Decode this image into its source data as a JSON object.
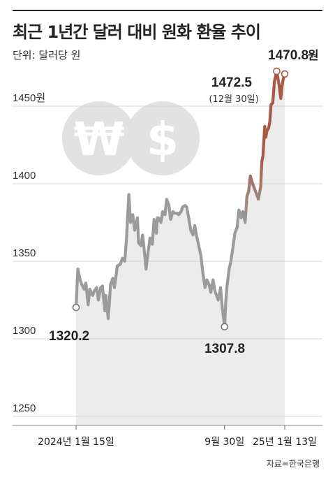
{
  "header": {
    "title": "최근 1년간 달러 대비 원화 환율 추이",
    "unit": "단위: 달러당 원"
  },
  "footer": {
    "source": "자료=한국은행"
  },
  "decor": {
    "won_glyph": "₩",
    "dollar_glyph": "$"
  },
  "colors": {
    "gray_line": "#9b9b9b",
    "accent_line": "#a85a44",
    "area": "#ececec",
    "grid": "#d4d4d4",
    "coin": "#e2e2e2"
  },
  "chart_data": {
    "type": "line",
    "title": "최근 1년간 달러 대비 원화 환율 추이",
    "ylabel": "단위: 달러당 원",
    "ylim": [
      1250,
      1475
    ],
    "yticks": [
      {
        "value": 1450,
        "label": "1450원"
      },
      {
        "value": 1400,
        "label": "1400"
      },
      {
        "value": 1350,
        "label": "1350"
      },
      {
        "value": 1300,
        "label": "1300"
      },
      {
        "value": 1250,
        "label": "1250"
      }
    ],
    "x_ticks": [
      {
        "date": "2024-01-15",
        "label": "2024년 1월 15일"
      },
      {
        "date": "2024-09-30",
        "label": "9월 30일"
      },
      {
        "date": "2025-01-13",
        "label": "25년 1월 13일"
      }
    ],
    "grid": true,
    "accent_from": "2024-11-01",
    "series": [
      {
        "values": [
          [
            "2024-01-15",
            1320.2
          ],
          [
            "2024-01-18",
            1345
          ],
          [
            "2024-01-22",
            1338
          ],
          [
            "2024-01-25",
            1335
          ],
          [
            "2024-01-29",
            1332
          ],
          [
            "2024-02-01",
            1336
          ],
          [
            "2024-02-05",
            1322
          ],
          [
            "2024-02-08",
            1332
          ],
          [
            "2024-02-13",
            1328
          ],
          [
            "2024-02-16",
            1331
          ],
          [
            "2024-02-20",
            1333
          ],
          [
            "2024-02-23",
            1325
          ],
          [
            "2024-02-27",
            1333
          ],
          [
            "2024-03-01",
            1334
          ],
          [
            "2024-03-05",
            1318
          ],
          [
            "2024-03-07",
            1328
          ],
          [
            "2024-03-11",
            1313
          ],
          [
            "2024-03-13",
            1322
          ],
          [
            "2024-03-15",
            1335
          ],
          [
            "2024-03-19",
            1339
          ],
          [
            "2024-03-22",
            1333
          ],
          [
            "2024-03-27",
            1347
          ],
          [
            "2024-04-01",
            1348
          ],
          [
            "2024-04-05",
            1352
          ],
          [
            "2024-04-09",
            1350
          ],
          [
            "2024-04-12",
            1365
          ],
          [
            "2024-04-16",
            1393
          ],
          [
            "2024-04-19",
            1375
          ],
          [
            "2024-04-23",
            1380
          ],
          [
            "2024-04-26",
            1370
          ],
          [
            "2024-05-01",
            1378
          ],
          [
            "2024-05-03",
            1362
          ],
          [
            "2024-05-07",
            1360
          ],
          [
            "2024-05-10",
            1367
          ],
          [
            "2024-05-14",
            1353
          ],
          [
            "2024-05-16",
            1345
          ],
          [
            "2024-05-20",
            1357
          ],
          [
            "2024-05-23",
            1365
          ],
          [
            "2024-05-27",
            1361
          ],
          [
            "2024-05-30",
            1377
          ],
          [
            "2024-06-03",
            1368
          ],
          [
            "2024-06-05",
            1378
          ],
          [
            "2024-06-07",
            1378
          ],
          [
            "2024-06-11",
            1375
          ],
          [
            "2024-06-14",
            1382
          ],
          [
            "2024-06-18",
            1380
          ],
          [
            "2024-06-21",
            1390
          ],
          [
            "2024-06-25",
            1386
          ],
          [
            "2024-06-28",
            1377
          ],
          [
            "2024-07-02",
            1382
          ],
          [
            "2024-07-05",
            1381
          ],
          [
            "2024-07-09",
            1381
          ],
          [
            "2024-07-12",
            1380
          ],
          [
            "2024-07-16",
            1382
          ],
          [
            "2024-07-19",
            1385
          ],
          [
            "2024-07-23",
            1386
          ],
          [
            "2024-07-26",
            1385
          ],
          [
            "2024-07-30",
            1377
          ],
          [
            "2024-08-02",
            1370
          ],
          [
            "2024-08-06",
            1367
          ],
          [
            "2024-08-09",
            1373
          ],
          [
            "2024-08-13",
            1365
          ],
          [
            "2024-08-16",
            1360
          ],
          [
            "2024-08-20",
            1353
          ],
          [
            "2024-08-23",
            1343
          ],
          [
            "2024-08-27",
            1333
          ],
          [
            "2024-08-30",
            1338
          ],
          [
            "2024-09-03",
            1335
          ],
          [
            "2024-09-06",
            1330
          ],
          [
            "2024-09-10",
            1338
          ],
          [
            "2024-09-13",
            1331
          ],
          [
            "2024-09-19",
            1325
          ],
          [
            "2024-09-23",
            1333
          ],
          [
            "2024-09-26",
            1320
          ],
          [
            "2024-09-30",
            1307.8
          ],
          [
            "2024-10-02",
            1323
          ],
          [
            "2024-10-04",
            1333
          ],
          [
            "2024-10-08",
            1345
          ],
          [
            "2024-10-11",
            1350
          ],
          [
            "2024-10-15",
            1360
          ],
          [
            "2024-10-18",
            1368
          ],
          [
            "2024-10-22",
            1372
          ],
          [
            "2024-10-25",
            1383
          ],
          [
            "2024-10-29",
            1378
          ],
          [
            "2024-11-01",
            1382
          ],
          [
            "2024-11-05",
            1375
          ],
          [
            "2024-11-08",
            1392
          ],
          [
            "2024-11-11",
            1395
          ],
          [
            "2024-11-14",
            1405
          ],
          [
            "2024-11-18",
            1400
          ],
          [
            "2024-11-21",
            1397
          ],
          [
            "2024-11-25",
            1393
          ],
          [
            "2024-11-28",
            1390
          ],
          [
            "2024-12-02",
            1398
          ],
          [
            "2024-12-04",
            1414
          ],
          [
            "2024-12-06",
            1418
          ],
          [
            "2024-12-09",
            1437
          ],
          [
            "2024-12-11",
            1430
          ],
          [
            "2024-12-13",
            1434
          ],
          [
            "2024-12-16",
            1436
          ],
          [
            "2024-12-18",
            1440
          ],
          [
            "2024-12-20",
            1451
          ],
          [
            "2024-12-23",
            1452
          ],
          [
            "2024-12-26",
            1466
          ],
          [
            "2024-12-30",
            1472.5
          ],
          [
            "2025-01-02",
            1466
          ],
          [
            "2025-01-03",
            1464
          ],
          [
            "2025-01-06",
            1455
          ],
          [
            "2025-01-08",
            1462
          ],
          [
            "2025-01-10",
            1467
          ],
          [
            "2025-01-13",
            1470.8
          ]
        ]
      }
    ],
    "annotations": [
      {
        "date": "2024-01-15",
        "value": 1320.2,
        "label": "1320.2"
      },
      {
        "date": "2024-09-30",
        "value": 1307.8,
        "label": "1307.8"
      },
      {
        "date": "2024-12-30",
        "value": 1472.5,
        "label": "1472.5",
        "sublabel": "(12월 30일)"
      },
      {
        "date": "2025-01-13",
        "value": 1470.8,
        "label": "1470.8",
        "unit": "원"
      }
    ]
  }
}
